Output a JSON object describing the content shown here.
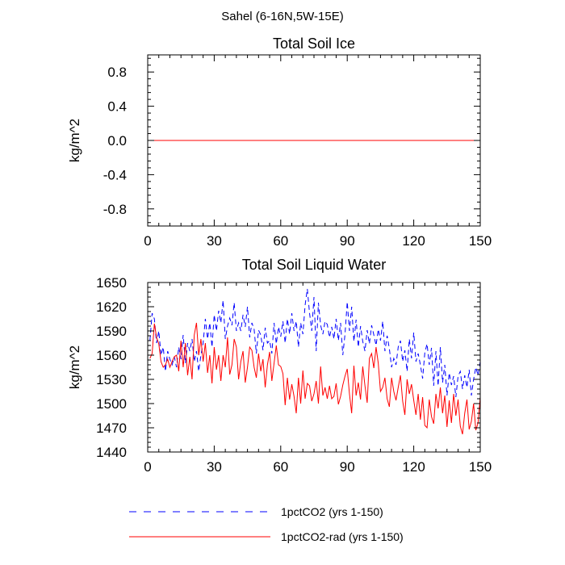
{
  "figure": {
    "title": "Sahel (6-16N,5W-15E)"
  },
  "colors": {
    "series_1pctCO2": "#0000ff",
    "series_rad": "#ff0000"
  },
  "chart_data": [
    {
      "type": "line",
      "title": "Total Soil Ice",
      "xlabel": "",
      "ylabel": "kg/m^2",
      "xlim": [
        0,
        150
      ],
      "ylim": [
        -1.0,
        1.0
      ],
      "xticks": [
        0,
        30,
        60,
        90,
        120,
        150
      ],
      "yticks": [
        -0.8,
        -0.4,
        0.0,
        0.4,
        0.8
      ],
      "ytick_labels": [
        "-0.8",
        "-0.4",
        "0.0",
        "0.4",
        "0.8"
      ],
      "grid": false,
      "series": [
        {
          "name": "1pctCO2 (yrs 1-150)",
          "color": "#0000ff",
          "dash": "dashed",
          "x": [
            0,
            150
          ],
          "y": [
            0.0,
            0.0
          ]
        },
        {
          "name": "1pctCO2-rad (yrs 1-150)",
          "color": "#ff0000",
          "dash": "solid",
          "x": [
            0,
            150
          ],
          "y": [
            0.0,
            0.0
          ]
        }
      ]
    },
    {
      "type": "line",
      "title": "Total Soil Liquid Water",
      "xlabel": "",
      "ylabel": "kg/m^2",
      "xlim": [
        0,
        150
      ],
      "ylim": [
        1440,
        1650
      ],
      "xticks": [
        0,
        30,
        60,
        90,
        120,
        150
      ],
      "yticks": [
        1440,
        1470,
        1500,
        1530,
        1560,
        1590,
        1620,
        1650
      ],
      "ytick_labels": [
        "1440",
        "1470",
        "1500",
        "1530",
        "1560",
        "1590",
        "1620",
        "1650"
      ],
      "grid": false,
      "series": [
        {
          "name": "1pctCO2 (yrs 1-150)",
          "color": "#0000ff",
          "dash": "dashed",
          "y": [
            1578,
            1612,
            1605,
            1575,
            1590,
            1560,
            1570,
            1540,
            1565,
            1555,
            1548,
            1558,
            1545,
            1570,
            1555,
            1585,
            1550,
            1575,
            1565,
            1580,
            1552,
            1565,
            1540,
            1560,
            1575,
            1605,
            1580,
            1600,
            1570,
            1610,
            1590,
            1615,
            1600,
            1628,
            1580,
            1596,
            1606,
            1597,
            1625,
            1590,
            1600,
            1590,
            1610,
            1595,
            1620,
            1582,
            1600,
            1592,
            1562,
            1591,
            1585,
            1566,
            1594,
            1575,
            1578,
            1562,
            1600,
            1574,
            1595,
            1583,
            1602,
            1575,
            1605,
            1586,
            1612,
            1590,
            1602,
            1570,
            1600,
            1586,
            1622,
            1642,
            1612,
            1590,
            1632,
            1565,
            1625,
            1597,
            1586,
            1602,
            1598,
            1582,
            1595,
            1580,
            1605,
            1578,
            1600,
            1560,
            1586,
            1626,
            1590,
            1620,
            1577,
            1604,
            1570,
            1596,
            1577,
            1565,
            1591,
            1574,
            1597,
            1585,
            1572,
            1592,
            1578,
            1602,
            1565,
            1584,
            1568,
            1545,
            1556,
            1548,
            1570,
            1578,
            1552,
            1566,
            1540,
            1580,
            1556,
            1588,
            1552,
            1562,
            1548,
            1531,
            1563,
            1574,
            1548,
            1569,
            1522,
            1565,
            1522,
            1570,
            1526,
            1548,
            1510,
            1538,
            1523,
            1534,
            1508,
            1534,
            1540,
            1518,
            1535,
            1520,
            1542,
            1510,
            1530,
            1545,
            1535,
            1552,
            1526,
            1558,
            1572,
            1562
          ]
        },
        {
          "name": "1pctCO2-rad (yrs 1-150)",
          "color": "#ff0000",
          "dash": "solid",
          "y": [
            1556,
            1562,
            1599,
            1582,
            1574,
            1552,
            1545,
            1548,
            1555,
            1545,
            1552,
            1558,
            1560,
            1540,
            1578,
            1545,
            1575,
            1535,
            1558,
            1530,
            1585,
            1600,
            1560,
            1580,
            1552,
            1575,
            1538,
            1560,
            1525,
            1570,
            1542,
            1560,
            1528,
            1560,
            1545,
            1582,
            1536,
            1548,
            1580,
            1570,
            1530,
            1552,
            1565,
            1526,
            1545,
            1570,
            1566,
            1545,
            1532,
            1562,
            1540,
            1555,
            1520,
            1548,
            1564,
            1528,
            1550,
            1572,
            1548,
            1546,
            1537,
            1498,
            1532,
            1505,
            1524,
            1509,
            1488,
            1532,
            1500,
            1541,
            1506,
            1525,
            1522,
            1503,
            1512,
            1528,
            1500,
            1546,
            1510,
            1520,
            1506,
            1522,
            1506,
            1509,
            1525,
            1499,
            1509,
            1523,
            1534,
            1543,
            1512,
            1488,
            1547,
            1510,
            1526,
            1505,
            1546,
            1522,
            1501,
            1556,
            1562,
            1544,
            1570,
            1550,
            1515,
            1520,
            1532,
            1506,
            1496,
            1532,
            1515,
            1504,
            1520,
            1535,
            1503,
            1486,
            1530,
            1512,
            1524,
            1504,
            1486,
            1512,
            1480,
            1508,
            1473,
            1470,
            1505,
            1484,
            1475,
            1512,
            1494,
            1520,
            1488,
            1510,
            1471,
            1504,
            1476,
            1512,
            1485,
            1505,
            1472,
            1462,
            1488,
            1505,
            1468,
            1478,
            1500,
            1467,
            1476,
            1508,
            1490,
            1474,
            1462,
            1496,
            1470,
            1470,
            1477
          ]
        }
      ]
    }
  ],
  "legend": {
    "placement": "bottom",
    "items": [
      {
        "label": "1pctCO2 (yrs 1-150)",
        "color": "#0000ff",
        "dash": "dashed"
      },
      {
        "label": "1pctCO2-rad (yrs 1-150)",
        "color": "#ff0000",
        "dash": "solid"
      }
    ]
  }
}
